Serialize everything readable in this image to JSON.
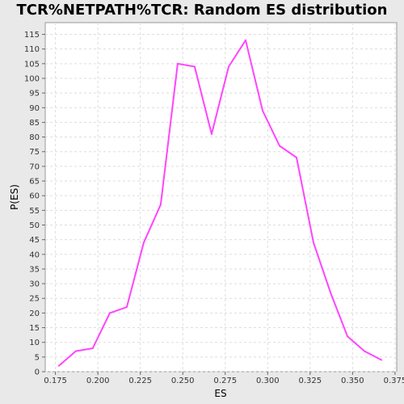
{
  "chart_data": {
    "type": "line",
    "title": "TCR%NETPATH%TCR: Random ES distribution",
    "xlabel": "ES",
    "ylabel": "P(ES)",
    "xlim": [
      0.169,
      0.376
    ],
    "ylim": [
      0,
      119
    ],
    "x_ticks": [
      "0.175",
      "0.200",
      "0.225",
      "0.250",
      "0.275",
      "0.300",
      "0.325",
      "0.350",
      "0.375"
    ],
    "y_ticks": [
      "0",
      "5",
      "10",
      "15",
      "20",
      "25",
      "30",
      "35",
      "40",
      "45",
      "50",
      "55",
      "60",
      "65",
      "70",
      "75",
      "80",
      "85",
      "90",
      "95",
      "100",
      "105",
      "110",
      "115"
    ],
    "grid": true,
    "series": [
      {
        "color": "#ff44ff",
        "x": [
          0.177,
          0.187,
          0.197,
          0.207,
          0.217,
          0.227,
          0.237,
          0.247,
          0.257,
          0.267,
          0.277,
          0.287,
          0.297,
          0.307,
          0.317,
          0.327,
          0.337,
          0.347,
          0.357,
          0.367
        ],
        "y": [
          2,
          7,
          8,
          20,
          22,
          44,
          57,
          105,
          104,
          81,
          104,
          113,
          89,
          77,
          73,
          44,
          27,
          12,
          7,
          4
        ]
      }
    ]
  }
}
